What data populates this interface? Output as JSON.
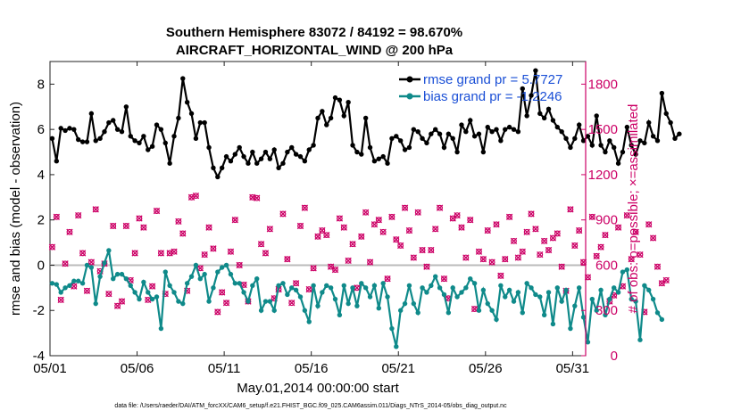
{
  "chart_data": {
    "type": "line",
    "title": "Southern Hemisphere 83072 / 84192 = 98.670%",
    "subtitle": "AIRCRAFT_HORIZONTAL_WIND @ 200 hPa",
    "xlabel": "May.01,2014 00:00:00 start",
    "ylabel_left": "rmse and bias (model - observation)",
    "ylabel_right": "# of obs: o=possible; ×=assimilated",
    "footer": "data file: /Users/raeder/DAI/ATM_forcXX/CAM6_setup/f.e21.FHIST_BGC.f09_025.CAM6assim.011/Diags_NTrS_2014-05/obs_diag_output.nc",
    "x_ticks": [
      "05/01",
      "05/06",
      "05/11",
      "05/16",
      "05/21",
      "05/26",
      "05/31"
    ],
    "x_tick_values": [
      0,
      5,
      10,
      15,
      20,
      25,
      30
    ],
    "xlim": [
      0,
      30.75
    ],
    "ylim_left": [
      -4,
      9
    ],
    "y_ticks_left": [
      "-4",
      "-2",
      "0",
      "2",
      "4",
      "6",
      "8"
    ],
    "ylim_right": [
      0,
      1950
    ],
    "y_ticks_right": [
      "0",
      "300",
      "600",
      "900",
      "1200",
      "1500",
      "1800"
    ],
    "grid": false,
    "zero_line": true,
    "legend_position": "top-right",
    "time_step_days": 0.25,
    "colors": {
      "rmse": "#000000",
      "bias": "#0f8a8a",
      "obs": "#cc0066",
      "legend_text": "#1a4fd6",
      "zero_line": "#bbbbbb"
    },
    "series": [
      {
        "name": "rmse grand pr = 5.7727",
        "color": "#000000",
        "axis": "left",
        "values": [
          5.6,
          4.6,
          6.05,
          5.95,
          6.05,
          6.0,
          5.55,
          5.45,
          5.45,
          6.7,
          5.5,
          5.6,
          5.9,
          6.3,
          6.4,
          6.0,
          5.9,
          7.0,
          5.7,
          5.5,
          5.4,
          5.7,
          5.1,
          5.25,
          6.2,
          6.0,
          5.4,
          4.5,
          5.7,
          6.5,
          8.25,
          7.2,
          6.7,
          5.6,
          6.3,
          6.3,
          5.2,
          4.3,
          3.9,
          4.3,
          4.8,
          4.6,
          4.9,
          5.2,
          4.8,
          4.5,
          5.0,
          4.5,
          4.7,
          5.0,
          4.7,
          5.1,
          4.3,
          4.5,
          5.0,
          5.2,
          4.9,
          4.8,
          4.6,
          5.1,
          5.3,
          6.5,
          6.8,
          6.2,
          6.5,
          7.4,
          7.3,
          6.6,
          7.2,
          5.3,
          5.0,
          4.9,
          6.5,
          5.2,
          4.6,
          4.7,
          4.8,
          4.5,
          5.6,
          5.7,
          5.5,
          5.1,
          5.2,
          6.0,
          5.9,
          5.6,
          5.4,
          5.8,
          6.0,
          5.8,
          5.2,
          5.8,
          5.6,
          5.0,
          6.2,
          5.9,
          6.4,
          5.7,
          5.8,
          5.0,
          6.1,
          5.9,
          6.0,
          5.5,
          6.0,
          6.1,
          6.0,
          5.9,
          7.8,
          6.6,
          7.5,
          8.6,
          6.7,
          6.5,
          6.9,
          6.4,
          6.1,
          5.9,
          5.6,
          5.2,
          5.6,
          6.2,
          5.5,
          5.7,
          5.3,
          6.6,
          5.3,
          5.0,
          5.5,
          5.2,
          4.5,
          5.0,
          6.1,
          5.3,
          4.9,
          5.5,
          5.4,
          6.3,
          5.7,
          5.5,
          7.6,
          6.7,
          6.3,
          5.6,
          5.8
        ]
      },
      {
        "name": "bias grand pr = -1.2246",
        "color": "#0f8a8a",
        "axis": "left",
        "values": [
          -0.8,
          -0.85,
          -1.2,
          -1.0,
          -0.9,
          -0.7,
          -0.7,
          -0.8,
          0.0,
          -0.1,
          -1.7,
          -0.5,
          0.1,
          0.65,
          -0.6,
          -0.4,
          -0.4,
          -0.6,
          -0.9,
          -1.2,
          -1.5,
          -0.75,
          -1.2,
          -1.5,
          -1.4,
          -2.8,
          -0.3,
          -0.9,
          -1.2,
          -1.6,
          -1.7,
          -0.8,
          -0.5,
          0.0,
          -0.6,
          -0.4,
          -1.6,
          -1.0,
          -0.3,
          -0.1,
          0.0,
          -0.4,
          -0.8,
          -0.8,
          -1.2,
          -1.6,
          -0.9,
          -0.6,
          -2.0,
          -1.6,
          -1.6,
          -2.0,
          -0.9,
          -0.8,
          -1.3,
          -1.0,
          -1.1,
          -1.4,
          -2.0,
          -2.5,
          -0.9,
          -1.8,
          -1.2,
          -0.9,
          -1.0,
          -1.5,
          -2.2,
          -0.9,
          -1.7,
          -1.0,
          -1.8,
          -0.8,
          -1.0,
          -1.4,
          -0.9,
          -1.9,
          -0.8,
          -1.4,
          -2.8,
          -3.6,
          -2.0,
          -1.7,
          -0.9,
          -1.7,
          -2.1,
          -1.0,
          -1.2,
          -0.9,
          -0.5,
          -1.0,
          -1.3,
          -2.1,
          -1.0,
          -1.4,
          -1.2,
          -1.0,
          -0.6,
          -0.8,
          -2.0,
          -1.1,
          -1.7,
          -2.0,
          -2.4,
          -0.9,
          -1.4,
          -1.1,
          -1.6,
          -1.2,
          -2.1,
          -0.8,
          -1.0,
          -1.3,
          -1.4,
          -2.2,
          -1.2,
          -2.6,
          -1.0,
          -1.6,
          -1.1,
          -2.8,
          -1.8,
          -1.0,
          -2.3,
          -3.4,
          -1.5,
          -2.0,
          -1.1,
          -2.2,
          -1.5,
          -1.0,
          -1.2,
          -0.3,
          -0.2,
          -1.5,
          -1.6,
          -3.3,
          -0.9,
          -1.1,
          -1.5,
          -2.1,
          -2.4
        ]
      },
      {
        "name": "# of obs (possible / assimilated)",
        "color": "#cc0066",
        "axis": "right",
        "values": [
          720,
          920,
          370,
          610,
          820,
          460,
          930,
          680,
          430,
          620,
          970,
          560,
          610,
          410,
          860,
          330,
          360,
          860,
          500,
          680,
          910,
          850,
          370,
          460,
          960,
          680,
          410,
          680,
          690,
          890,
          810,
          430,
          1050,
          1060,
          580,
          670,
          850,
          710,
          290,
          420,
          350,
          690,
          900,
          600,
          470,
          360,
          1050,
          1045,
          740,
          680,
          840,
          380,
          440,
          940,
          640,
          350,
          480,
          860,
          980,
          440,
          580,
          790,
          830,
          800,
          590,
          570,
          910,
          850,
          630,
          740,
          450,
          790,
          950,
          620,
          870,
          900,
          820,
          510,
          920,
          770,
          730,
          980,
          830,
          650,
          950,
          700,
          590,
          700,
          840,
          980,
          510,
          380,
          910,
          930,
          850,
          650,
          900,
          310,
          690,
          640,
          830,
          620,
          870,
          530,
          640,
          920,
          760,
          650,
          690,
          820,
          940,
          840,
          670,
          760,
          700,
          780,
          810,
          590,
          430,
          970,
          730,
          830,
          620,
          520,
          920,
          660,
          720,
          800,
          360,
          400,
          850,
          460,
          930,
          640,
          820,
          670,
          290,
          870,
          780,
          590,
          480,
          500
        ]
      }
    ],
    "legend": [
      "rmse grand pr = 5.7727",
      "bias grand pr = -1.2246"
    ]
  }
}
